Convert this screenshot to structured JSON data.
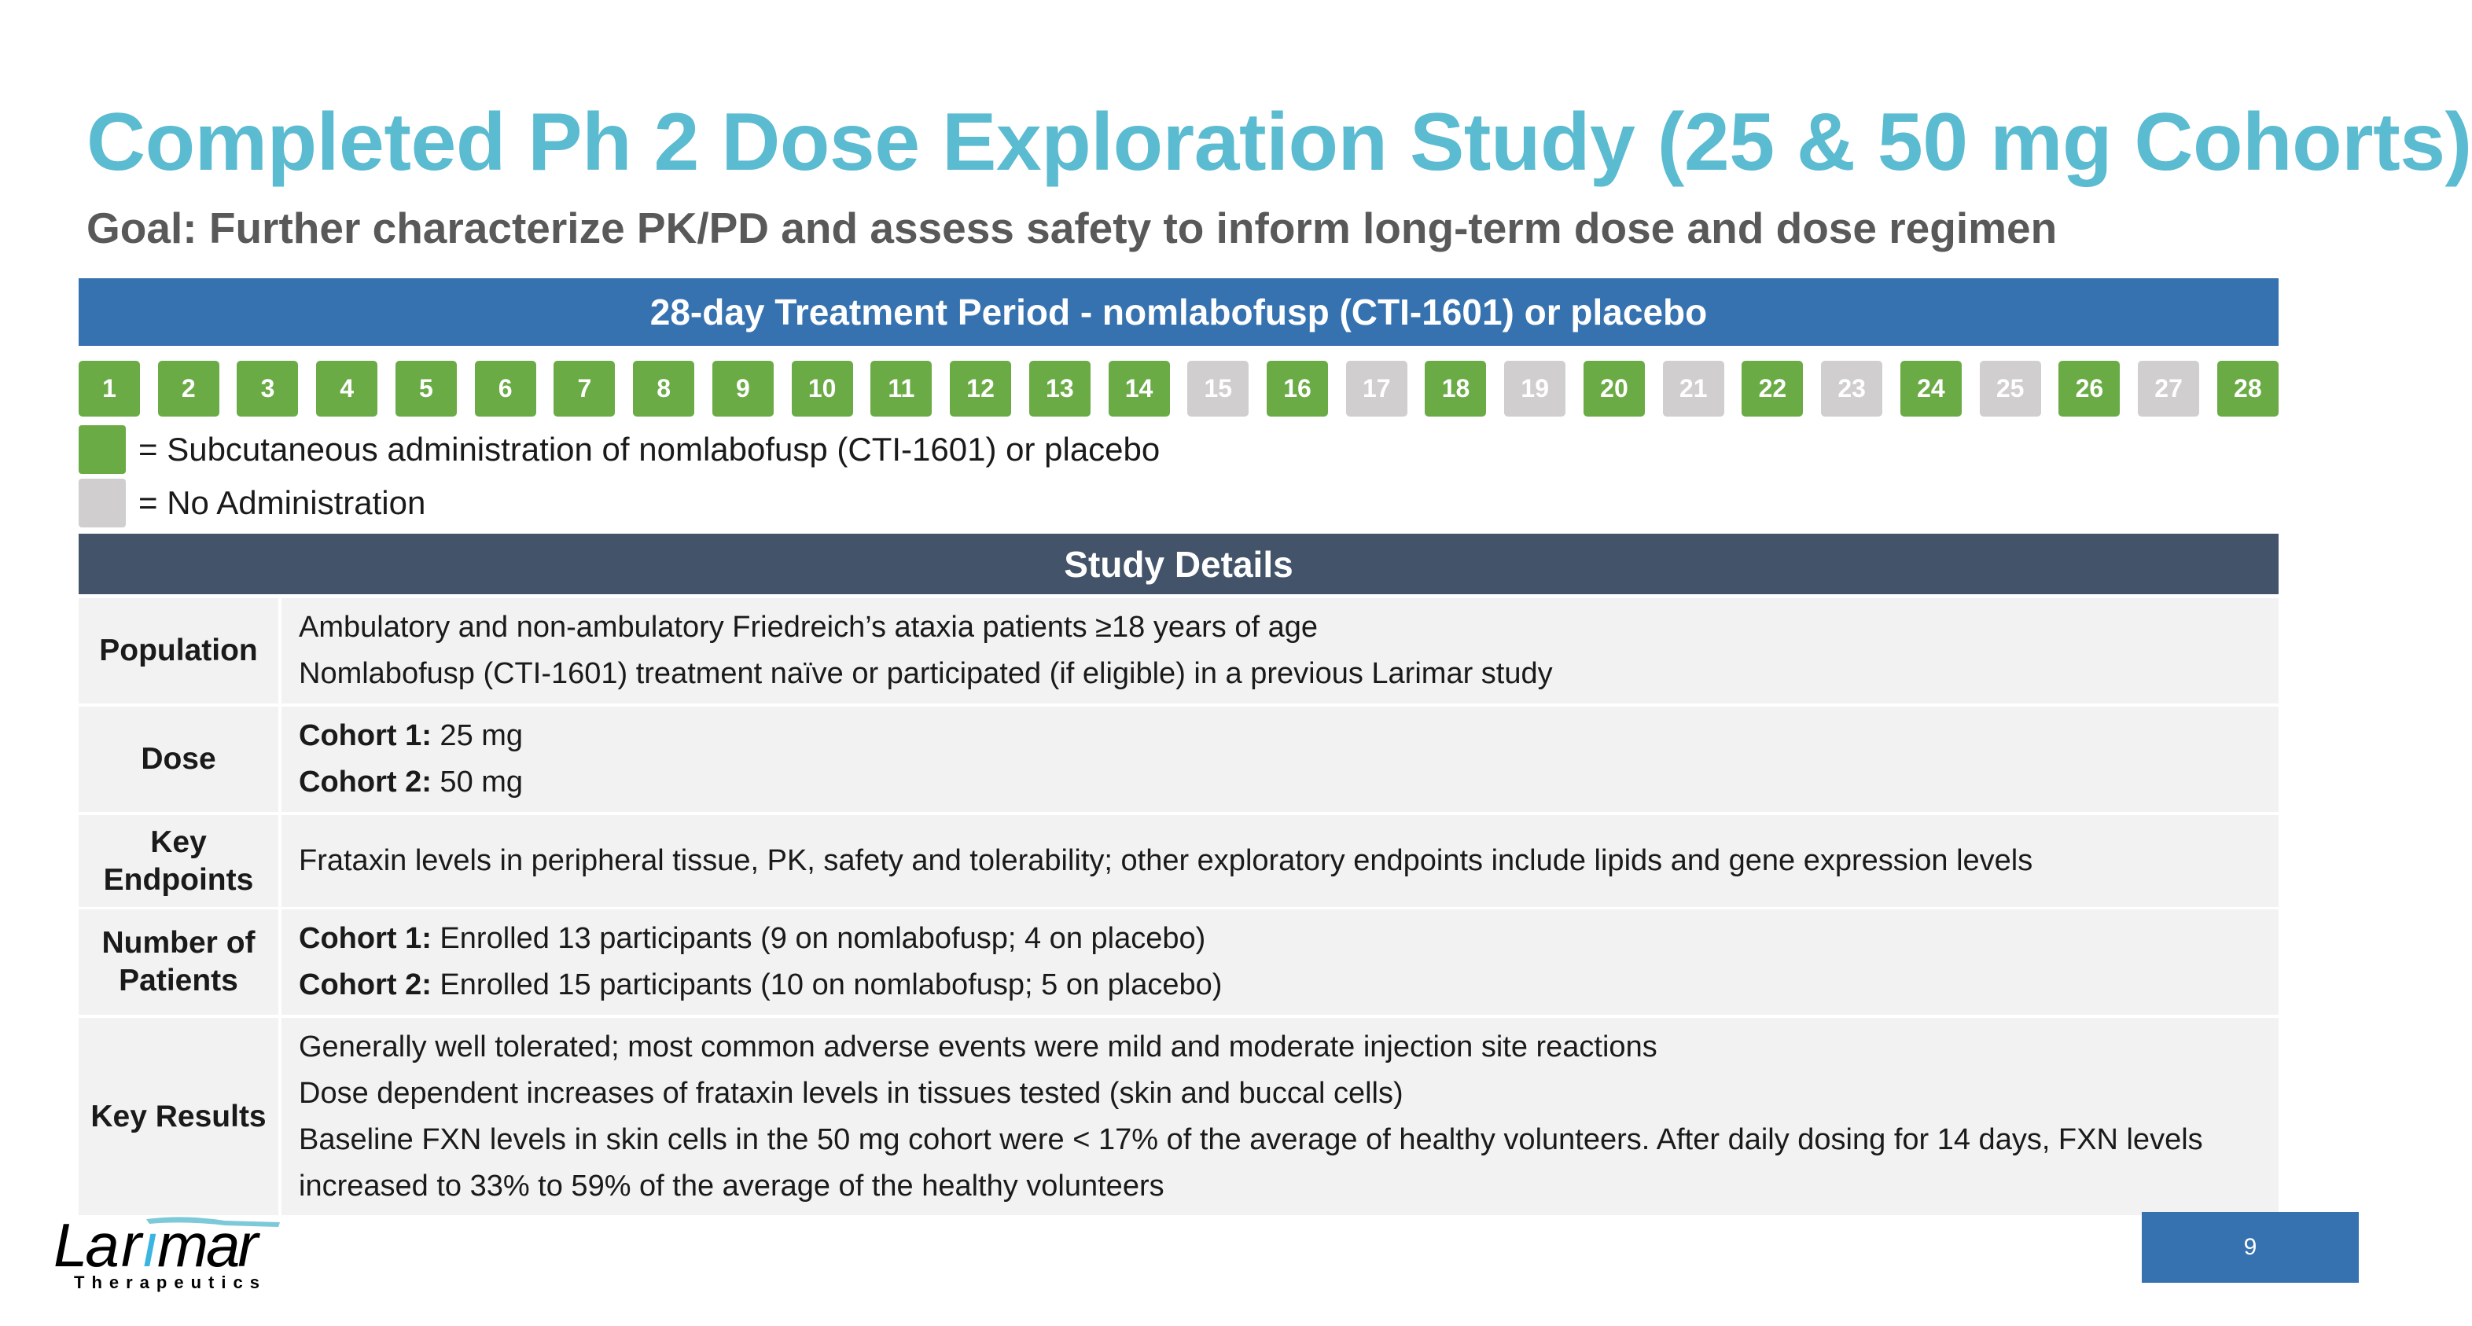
{
  "title": "Completed Ph 2 Dose Exploration Study (25 & 50 mg Cohorts)",
  "subtitle": "Goal: Further characterize PK/PD and assess safety to inform long-term dose and dose regimen",
  "period_header": "28-day Treatment Period - nomlabofusp (CTI-1601) or placebo",
  "colors": {
    "administered": "#6aab45",
    "none": "#d0cece",
    "title": "#5bbbd0",
    "header_blue": "#3672b0",
    "details_header": "#435369"
  },
  "days": [
    {
      "n": "1",
      "dosed": true
    },
    {
      "n": "2",
      "dosed": true
    },
    {
      "n": "3",
      "dosed": true
    },
    {
      "n": "4",
      "dosed": true
    },
    {
      "n": "5",
      "dosed": true
    },
    {
      "n": "6",
      "dosed": true
    },
    {
      "n": "7",
      "dosed": true
    },
    {
      "n": "8",
      "dosed": true
    },
    {
      "n": "9",
      "dosed": true
    },
    {
      "n": "10",
      "dosed": true
    },
    {
      "n": "11",
      "dosed": true
    },
    {
      "n": "12",
      "dosed": true
    },
    {
      "n": "13",
      "dosed": true
    },
    {
      "n": "14",
      "dosed": true
    },
    {
      "n": "15",
      "dosed": false
    },
    {
      "n": "16",
      "dosed": true
    },
    {
      "n": "17",
      "dosed": false
    },
    {
      "n": "18",
      "dosed": true
    },
    {
      "n": "19",
      "dosed": false
    },
    {
      "n": "20",
      "dosed": true
    },
    {
      "n": "21",
      "dosed": false
    },
    {
      "n": "22",
      "dosed": true
    },
    {
      "n": "23",
      "dosed": false
    },
    {
      "n": "24",
      "dosed": true
    },
    {
      "n": "25",
      "dosed": false
    },
    {
      "n": "26",
      "dosed": true
    },
    {
      "n": "27",
      "dosed": false
    },
    {
      "n": "28",
      "dosed": true
    }
  ],
  "legend": {
    "administered": "= Subcutaneous administration of nomlabofusp (CTI-1601) or placebo",
    "none": "= No Administration"
  },
  "details_header": "Study Details",
  "rows": [
    {
      "key": "Population",
      "lines": [
        {
          "b": "",
          "t": "Ambulatory and non-ambulatory Friedreich’s ataxia patients ≥18 years of age"
        },
        {
          "b": "",
          "t": "Nomlabofusp (CTI-1601) treatment naïve or participated (if eligible) in a previous Larimar study"
        }
      ]
    },
    {
      "key": "Dose",
      "lines": [
        {
          "b": "Cohort 1:",
          "t": " 25 mg"
        },
        {
          "b": "Cohort 2:",
          "t": " 50 mg"
        }
      ]
    },
    {
      "key": "Key Endpoints",
      "lines": [
        {
          "b": "",
          "t": "Frataxin levels in peripheral tissue, PK, safety and tolerability; other exploratory endpoints include lipids and gene expression levels"
        }
      ]
    },
    {
      "key": "Number of Patients",
      "lines": [
        {
          "b": "Cohort 1:",
          "t": " Enrolled 13 participants (9 on nomlabofusp; 4 on placebo)"
        },
        {
          "b": "Cohort 2:",
          "t": " Enrolled 15 participants (10 on nomlabofusp; 5 on placebo)"
        }
      ]
    },
    {
      "key": "Key Results",
      "lines": [
        {
          "b": "",
          "t": "Generally well tolerated; most common adverse events were mild and moderate injection site reactions"
        },
        {
          "b": "",
          "t": "Dose dependent increases of frataxin levels in tissues tested (skin and buccal cells)"
        },
        {
          "b": "",
          "t": "Baseline FXN levels in skin cells in the 50 mg cohort were < 17% of the average of healthy volunteers. After daily dosing for 14 days, FXN levels increased to 33% to 59% of the average of the healthy volunteers"
        }
      ]
    }
  ],
  "logo": {
    "name": "Larimar",
    "tagline": "Therapeutics"
  },
  "page_number": "9"
}
